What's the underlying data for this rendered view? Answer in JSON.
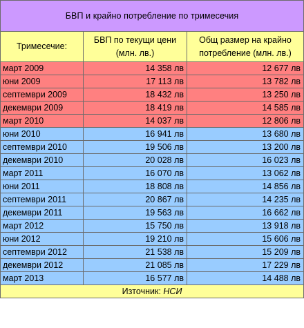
{
  "title": "БВП и крайно потребление по тримесечия",
  "colors": {
    "title_bg": "#cc99ff",
    "header_bg": "#ffff99",
    "group_a_bg": "#ff8080",
    "group_b_bg": "#99ccff",
    "source_bg": "#ffff99",
    "border": "#6b6b6b"
  },
  "columns": {
    "period": "Тримесечие:",
    "gdp_line1": "БВП по текущи цени",
    "gdp_line2": "(млн. лв.)",
    "consumption_line1": "Общ размер на крайно",
    "consumption_line2": "потребление (млн. лв.)"
  },
  "rows": [
    {
      "period": "март 2009",
      "gdp": "14 358 лв",
      "consumption": "12 677 лв",
      "group": "a"
    },
    {
      "period": "юни 2009",
      "gdp": "17 113 лв",
      "consumption": "13 782 лв",
      "group": "a"
    },
    {
      "period": "септември 2009",
      "gdp": "18 432 лв",
      "consumption": "13 250 лв",
      "group": "a"
    },
    {
      "period": "декември 2009",
      "gdp": "18 419 лв",
      "consumption": "14 585 лв",
      "group": "a"
    },
    {
      "period": "март 2010",
      "gdp": "14 037 лв",
      "consumption": "12 806 лв",
      "group": "a"
    },
    {
      "period": "юни 2010",
      "gdp": "16 941 лв",
      "consumption": "13 680 лв",
      "group": "b"
    },
    {
      "period": "септември 2010",
      "gdp": "19 506 лв",
      "consumption": "13 200 лв",
      "group": "b"
    },
    {
      "period": "декември 2010",
      "gdp": "20 028 лв",
      "consumption": "16 023 лв",
      "group": "b"
    },
    {
      "period": "март 2011",
      "gdp": "16 070 лв",
      "consumption": "13 062 лв",
      "group": "b"
    },
    {
      "period": "юни 2011",
      "gdp": "18 808 лв",
      "consumption": "14 856 лв",
      "group": "b"
    },
    {
      "period": "септември 2011",
      "gdp": "20 867 лв",
      "consumption": "14 235 лв",
      "group": "b"
    },
    {
      "period": "декември 2011",
      "gdp": "19 563 лв",
      "consumption": "16 662 лв",
      "group": "b"
    },
    {
      "period": "март 2012",
      "gdp": "15 750 лв",
      "consumption": "13 918 лв",
      "group": "b"
    },
    {
      "period": "юни 2012",
      "gdp": "19 210 лв",
      "consumption": "15 606 лв",
      "group": "b"
    },
    {
      "period": "септември 2012",
      "gdp": "21 538 лв",
      "consumption": "15 209 лв",
      "group": "b"
    },
    {
      "period": "декември 2012",
      "gdp": "21 085 лв",
      "consumption": "17 229 лв",
      "group": "b"
    },
    {
      "period": "март 2013",
      "gdp": "16 577 лв",
      "consumption": "14 488 лв",
      "group": "b"
    }
  ],
  "source": {
    "label": "Източник:",
    "value": "НСИ"
  }
}
